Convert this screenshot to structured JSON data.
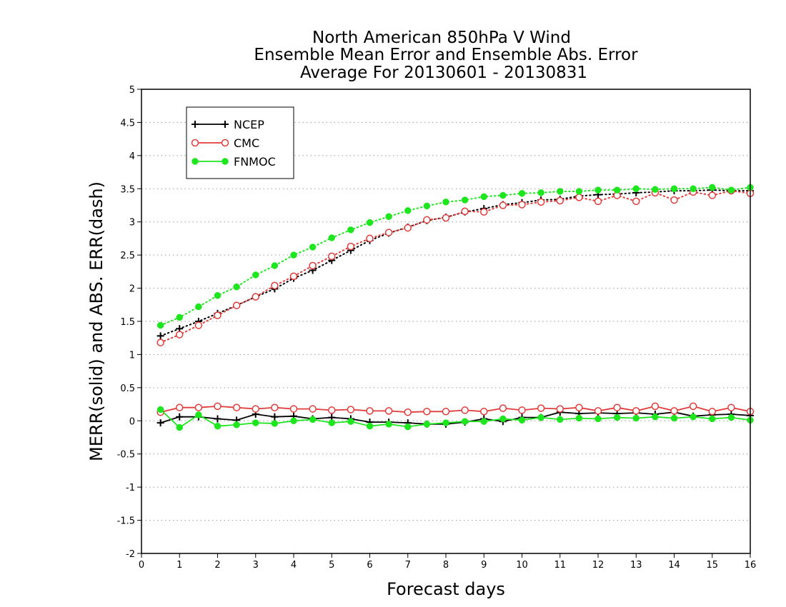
{
  "chart_data": {
    "type": "line",
    "title": [
      "North American 850hPa V Wind",
      "Ensemble Mean Error and Ensemble Abs. Error",
      "Average For 20130601 - 20130831"
    ],
    "xlabel": "Forecast days",
    "ylabel": "MERR(solid) and ABS. ERR(dash)",
    "xlim": [
      0,
      16
    ],
    "ylim": [
      -2,
      5
    ],
    "x_ticks": [
      0,
      1,
      2,
      3,
      4,
      5,
      6,
      7,
      8,
      9,
      10,
      11,
      12,
      13,
      14,
      15,
      16
    ],
    "y_ticks": [
      -2,
      -1.5,
      -1,
      -0.5,
      0,
      0.5,
      1,
      1.5,
      2,
      2.5,
      3,
      3.5,
      4,
      4.5,
      5
    ],
    "grid": "horizontal dotted",
    "legend_position": "top-left",
    "x": [
      0.5,
      1,
      1.5,
      2,
      2.5,
      3,
      3.5,
      4,
      4.5,
      5,
      5.5,
      6,
      6.5,
      7,
      7.5,
      8,
      8.5,
      9,
      9.5,
      10,
      10.5,
      11,
      11.5,
      12,
      12.5,
      13,
      13.5,
      14,
      14.5,
      15,
      15.5,
      16
    ],
    "series": [
      {
        "name": "NCEP",
        "color": "#000000",
        "marker": "plus",
        "merr": [
          -0.03,
          0.06,
          0.06,
          0.03,
          0.01,
          0.1,
          0.06,
          0.07,
          0.03,
          0.05,
          0.03,
          -0.02,
          -0.02,
          -0.03,
          -0.05,
          -0.05,
          -0.02,
          0.03,
          -0.01,
          0.05,
          0.05,
          0.13,
          0.11,
          0.12,
          0.11,
          0.12,
          0.1,
          0.13,
          0.07,
          0.09,
          0.1,
          0.08
        ],
        "abs_err": [
          1.28,
          1.39,
          1.5,
          1.62,
          1.74,
          1.87,
          1.99,
          2.15,
          2.27,
          2.42,
          2.57,
          2.72,
          2.83,
          2.92,
          3.02,
          3.07,
          3.15,
          3.2,
          3.26,
          3.29,
          3.33,
          3.34,
          3.39,
          3.41,
          3.42,
          3.44,
          3.45,
          3.47,
          3.47,
          3.48,
          3.47,
          3.47
        ]
      },
      {
        "name": "CMC",
        "color": "#e03c3c",
        "marker": "open-circle",
        "merr": [
          0.13,
          0.2,
          0.2,
          0.22,
          0.2,
          0.18,
          0.2,
          0.18,
          0.18,
          0.16,
          0.17,
          0.15,
          0.15,
          0.13,
          0.14,
          0.14,
          0.16,
          0.14,
          0.19,
          0.16,
          0.19,
          0.18,
          0.2,
          0.15,
          0.2,
          0.15,
          0.22,
          0.15,
          0.22,
          0.14,
          0.2,
          0.14
        ],
        "abs_err": [
          1.18,
          1.3,
          1.44,
          1.59,
          1.74,
          1.87,
          2.04,
          2.18,
          2.34,
          2.48,
          2.63,
          2.75,
          2.84,
          2.91,
          3.03,
          3.06,
          3.16,
          3.15,
          3.25,
          3.26,
          3.3,
          3.32,
          3.37,
          3.31,
          3.4,
          3.31,
          3.44,
          3.33,
          3.45,
          3.4,
          3.47,
          3.43
        ]
      },
      {
        "name": "FNMOC",
        "color": "#1ee61e",
        "marker": "filled-circle",
        "merr": [
          0.17,
          -0.1,
          0.09,
          -0.08,
          -0.06,
          -0.03,
          -0.04,
          0.0,
          0.02,
          -0.03,
          -0.01,
          -0.08,
          -0.05,
          -0.09,
          -0.05,
          -0.03,
          -0.01,
          -0.01,
          0.03,
          0.01,
          0.05,
          0.02,
          0.04,
          0.03,
          0.05,
          0.04,
          0.06,
          0.04,
          0.06,
          0.03,
          0.05,
          0.01
        ],
        "abs_err": [
          1.44,
          1.56,
          1.72,
          1.89,
          2.02,
          2.2,
          2.34,
          2.5,
          2.62,
          2.76,
          2.88,
          2.99,
          3.08,
          3.17,
          3.24,
          3.3,
          3.33,
          3.38,
          3.4,
          3.43,
          3.44,
          3.46,
          3.46,
          3.48,
          3.48,
          3.5,
          3.49,
          3.5,
          3.5,
          3.52,
          3.48,
          3.52
        ]
      }
    ]
  }
}
